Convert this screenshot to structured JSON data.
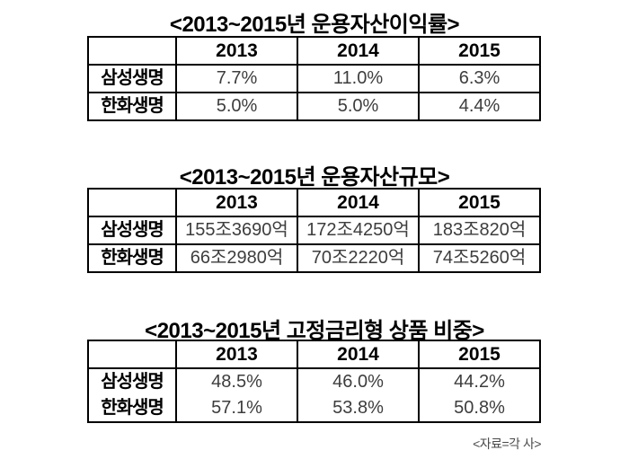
{
  "page": {
    "background": "#ffffff",
    "title_color": "#000000",
    "value_text_color": "#3d3d3d",
    "border_color": "#000000"
  },
  "source_note": "<자료=각 사>",
  "tables": [
    {
      "title": "<2013~2015년 운용자산이익률>",
      "col_headers": [
        "2013",
        "2014",
        "2015"
      ],
      "rows": [
        {
          "label": "삼성생명",
          "values": [
            "7.7%",
            "11.0%",
            "6.3%"
          ]
        },
        {
          "label": "한화생명",
          "values": [
            "5.0%",
            "5.0%",
            "4.4%"
          ]
        }
      ]
    },
    {
      "title": "<2013~2015년 운용자산규모>",
      "col_headers": [
        "2013",
        "2014",
        "2015"
      ],
      "rows": [
        {
          "label": "삼성생명",
          "values": [
            "155조3690억",
            "172조4250억",
            "183조820억"
          ]
        },
        {
          "label": "한화생명",
          "values": [
            "66조2980억",
            "70조2220억",
            "74조5260억"
          ]
        }
      ]
    },
    {
      "title": "<2013~2015년 고정금리형 상품 비중>",
      "col_headers": [
        "2013",
        "2014",
        "2015"
      ],
      "rows": [
        {
          "label": "삼성생명",
          "values": [
            "48.5%",
            "46.0%",
            "44.2%"
          ]
        },
        {
          "label": "한화생명",
          "values": [
            "57.1%",
            "53.8%",
            "50.8%"
          ]
        }
      ]
    }
  ],
  "chart_data": [
    {
      "type": "table",
      "title": "<2013~2015년 운용자산이익률>",
      "unit": "%",
      "categories": [
        "2013",
        "2014",
        "2015"
      ],
      "series": [
        {
          "name": "삼성생명",
          "values": [
            7.7,
            11.0,
            6.3
          ]
        },
        {
          "name": "한화생명",
          "values": [
            5.0,
            5.0,
            4.4
          ]
        }
      ]
    },
    {
      "type": "table",
      "title": "<2013~2015년 운용자산규모>",
      "unit": "조원",
      "categories": [
        "2013",
        "2014",
        "2015"
      ],
      "series": [
        {
          "name": "삼성생명",
          "values": [
            155.369,
            172.425,
            183.082
          ],
          "labels": [
            "155조3690억",
            "172조4250억",
            "183조820억"
          ]
        },
        {
          "name": "한화생명",
          "values": [
            66.298,
            70.222,
            74.526
          ],
          "labels": [
            "66조2980억",
            "70조2220억",
            "74조5260억"
          ]
        }
      ]
    },
    {
      "type": "table",
      "title": "<2013~2015년 고정금리형 상품 비중>",
      "unit": "%",
      "categories": [
        "2013",
        "2014",
        "2015"
      ],
      "series": [
        {
          "name": "삼성생명",
          "values": [
            48.5,
            46.0,
            44.2
          ]
        },
        {
          "name": "한화생명",
          "values": [
            57.1,
            53.8,
            50.8
          ]
        }
      ]
    }
  ]
}
